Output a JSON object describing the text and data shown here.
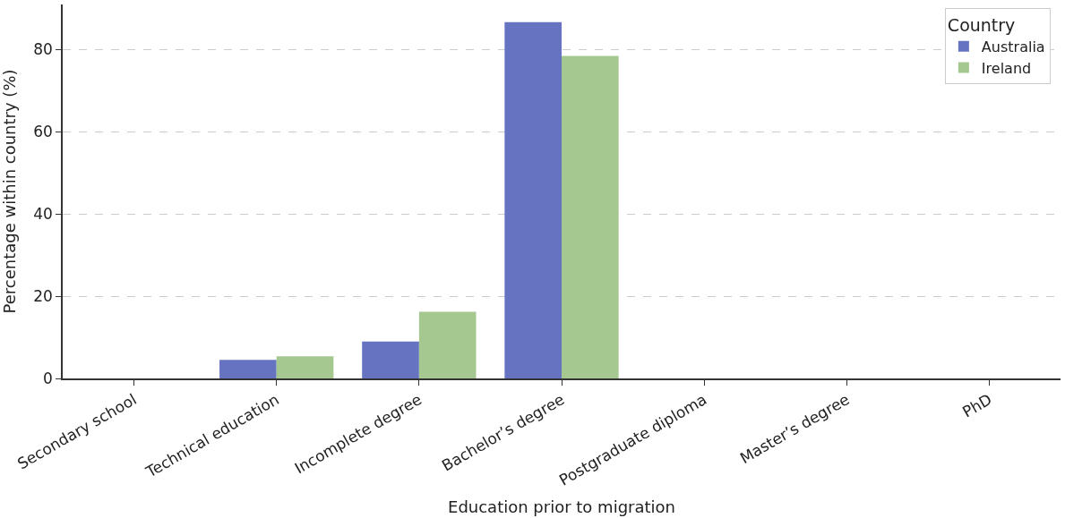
{
  "chart_data": {
    "type": "bar",
    "xlabel": "Education prior to migration",
    "ylabel": "Percentage within country (%)",
    "legend_title": "Country",
    "categories": [
      "Secondary school",
      "Technical education",
      "Incomplete degree",
      "Bachelor’s degree",
      "Postgraduate diploma",
      "Master’s degree",
      "PhD"
    ],
    "series": [
      {
        "name": "Australia",
        "color": "#6673c1",
        "values": [
          0,
          4.5,
          9.0,
          86.7,
          0,
          0,
          0
        ]
      },
      {
        "name": "Ireland",
        "color": "#a5c890",
        "values": [
          0,
          5.4,
          16.2,
          78.5,
          0,
          0,
          0
        ]
      }
    ],
    "ylim": [
      0,
      91
    ],
    "yticks": [
      0,
      20,
      40,
      60,
      80
    ],
    "grid": "y",
    "legend": "top right"
  }
}
